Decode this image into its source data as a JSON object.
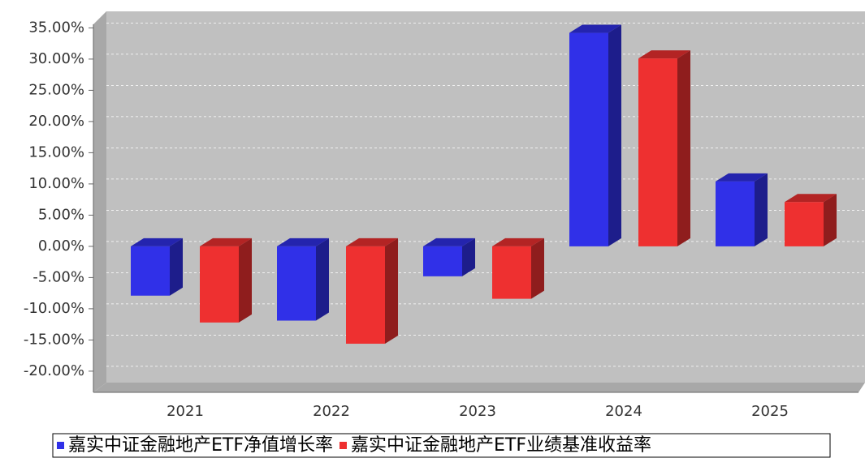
{
  "chart_data": {
    "type": "bar3d",
    "categories": [
      "2021",
      "2022",
      "2023",
      "2024",
      "2025"
    ],
    "series": [
      {
        "name": "嘉实中证金融地产ETF净值增长率",
        "color": "#3030e8",
        "values": [
          -7.9,
          -11.9,
          -4.8,
          34.2,
          10.4
        ]
      },
      {
        "name": "嘉实中证金融地产ETF业绩基准收益率",
        "color": "#ee3030",
        "values": [
          -12.2,
          -15.6,
          -8.4,
          30.1,
          7.1
        ]
      }
    ],
    "ylim": [
      -23,
      37
    ],
    "yticks": [
      {
        "value": -20,
        "label": "-20.00%"
      },
      {
        "value": -15,
        "label": "-15.00%"
      },
      {
        "value": -10,
        "label": "-10.00%"
      },
      {
        "value": -5,
        "label": "-5.00%"
      },
      {
        "value": 0,
        "label": "0.00%"
      },
      {
        "value": 5,
        "label": "5.00%"
      },
      {
        "value": 10,
        "label": "10.00%"
      },
      {
        "value": 15,
        "label": "15.00%"
      },
      {
        "value": 20,
        "label": "20.00%"
      },
      {
        "value": 25,
        "label": "25.00%"
      },
      {
        "value": 30,
        "label": "30.00%"
      },
      {
        "value": 35,
        "label": "35.00%"
      }
    ],
    "grid": true,
    "legend": "bottom"
  }
}
